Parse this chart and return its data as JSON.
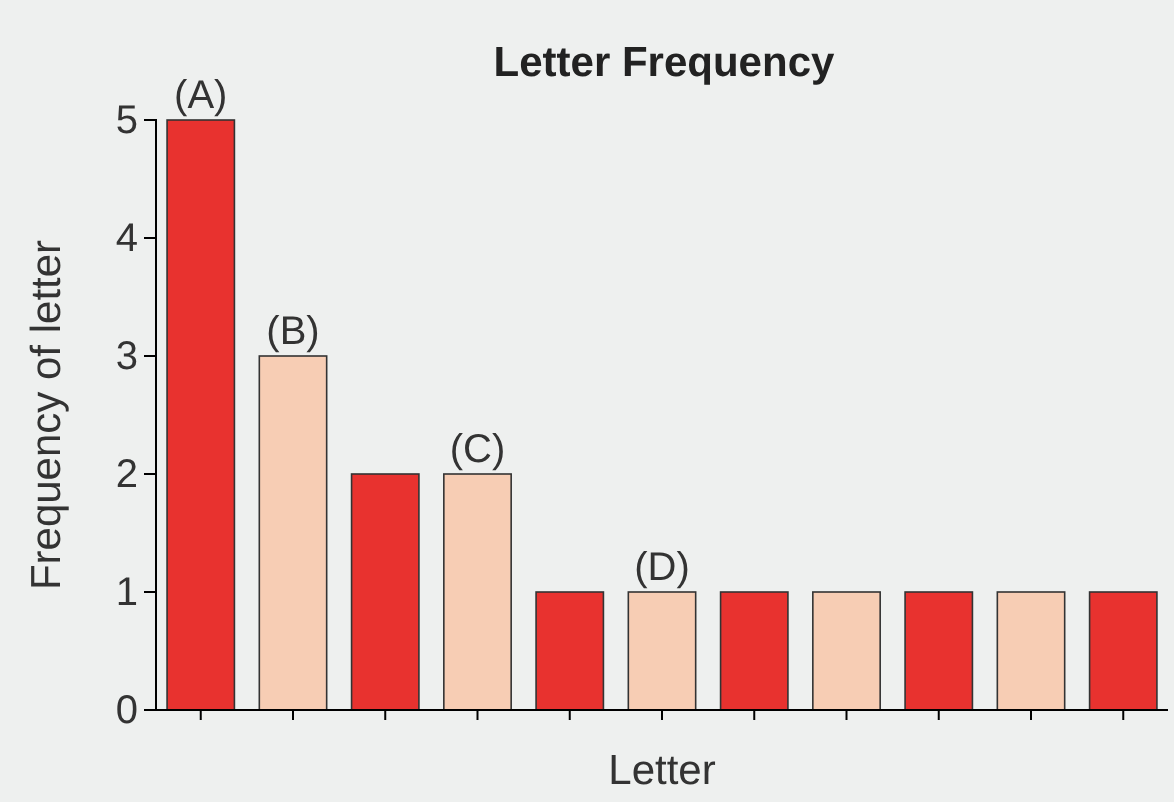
{
  "chart_data": {
    "type": "bar",
    "title": "Letter Frequency",
    "xlabel": "Letter",
    "ylabel": "Frequency of letter",
    "categories": [
      null,
      null,
      null,
      null,
      null,
      null,
      null,
      null,
      null,
      null,
      null
    ],
    "values": [
      5,
      3,
      2,
      2,
      1,
      1,
      1,
      1,
      1,
      1,
      1
    ],
    "colors": [
      "#e8322f",
      "#f7cdb4",
      "#e8322f",
      "#f7cdb4",
      "#e8322f",
      "#f7cdb4",
      "#e8322f",
      "#f7cdb4",
      "#e8322f",
      "#f7cdb4",
      "#e8322f"
    ],
    "value_labels": [
      "(A)",
      "(B)",
      null,
      "(C)",
      null,
      "(D)",
      null,
      null,
      null,
      null,
      null
    ],
    "ylim": [
      0,
      5
    ],
    "yticks": [
      0,
      1,
      2,
      3,
      4,
      5
    ]
  }
}
